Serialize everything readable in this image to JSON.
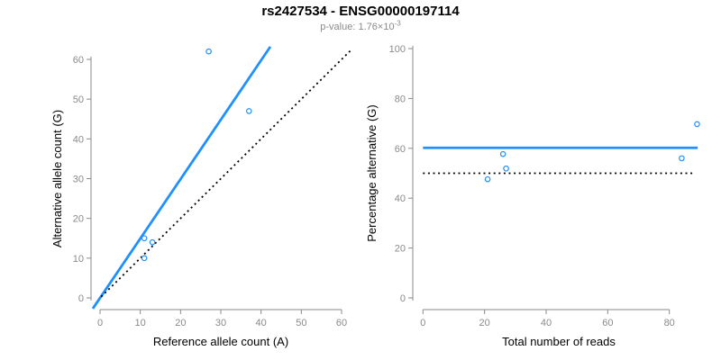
{
  "title": "rs2427534 - ENSG00000197114",
  "p_value": {
    "label": "p-value:",
    "mantissa": "1.76",
    "multiplier": "×",
    "base": "10",
    "exponent": "-3"
  },
  "colors": {
    "accent_blue": "#1E90FF",
    "dotted_black": "#000000",
    "axis_gray": "#8a8a8a",
    "tick_text_gray": "#8a8a8a",
    "label_black": "#000000",
    "subtitle_gray": "#8a8a8a"
  },
  "chart_data": [
    {
      "type": "scatter",
      "name": "allele-counts",
      "title": "",
      "xlabel": "Reference allele count (A)",
      "ylabel": "Alternative allele count (G)",
      "xticks": [
        0,
        10,
        20,
        30,
        40,
        50,
        60
      ],
      "yticks": [
        0,
        10,
        20,
        30,
        40,
        50,
        60
      ],
      "xlim": [
        0,
        62
      ],
      "ylim": [
        0,
        63
      ],
      "grid": false,
      "legend": "none",
      "point_style": "open-circle",
      "points": [
        {
          "x": 11,
          "y": 15
        },
        {
          "x": 13,
          "y": 14
        },
        {
          "x": 11,
          "y": 10
        },
        {
          "x": 27,
          "y": 62
        },
        {
          "x": 37,
          "y": 47
        }
      ],
      "lines": [
        {
          "name": "fit-line",
          "style": "solid",
          "color": "#1E90FF",
          "slope": 1.495,
          "intercept": 0,
          "from": {
            "x": -1.8,
            "y": -2.7
          },
          "to": {
            "x": 42.3,
            "y": 63.2
          }
        },
        {
          "name": "identity-line",
          "style": "dotted",
          "color": "#000000",
          "slope": 1,
          "intercept": 0,
          "from": {
            "x": 0.3,
            "y": 0.3
          },
          "to": {
            "x": 62.3,
            "y": 62.3
          }
        }
      ]
    },
    {
      "type": "scatter",
      "name": "percentage-vs-reads",
      "title": "",
      "xlabel": "Total number of reads",
      "ylabel": "Percentage alternative (G)",
      "xticks": [
        0,
        20,
        40,
        60,
        80
      ],
      "yticks": [
        0,
        20,
        40,
        60,
        80,
        100
      ],
      "xlim": [
        0,
        90
      ],
      "ylim": [
        0,
        100
      ],
      "grid": false,
      "legend": "none",
      "point_style": "open-circle",
      "points": [
        {
          "x": 21,
          "y": 47.6
        },
        {
          "x": 26,
          "y": 57.7
        },
        {
          "x": 27,
          "y": 51.9
        },
        {
          "x": 84,
          "y": 56.0
        },
        {
          "x": 89,
          "y": 69.7
        }
      ],
      "lines": [
        {
          "name": "mean-percentage-line",
          "style": "solid",
          "color": "#1E90FF",
          "y": 60.2,
          "from": {
            "x": 0,
            "y": 60.2
          },
          "to": {
            "x": 89.2,
            "y": 60.2
          }
        },
        {
          "name": "fifty-percent-line",
          "style": "dotted",
          "color": "#000000",
          "y": 50,
          "from": {
            "x": 0,
            "y": 50
          },
          "to": {
            "x": 87.5,
            "y": 50
          }
        }
      ]
    }
  ]
}
